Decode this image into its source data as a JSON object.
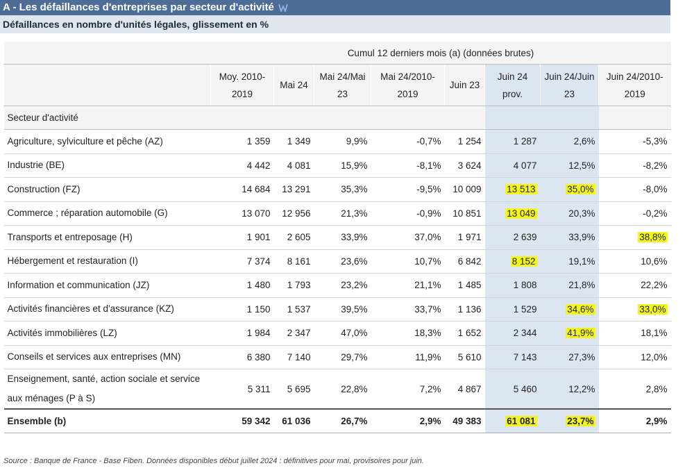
{
  "header": {
    "title": "A - Les défaillances d'entreprises par secteur d'activité",
    "subtitle": "Défaillances en nombre d'unités légales, glissement en %"
  },
  "table": {
    "group_header": "Cumul 12 derniers mois (a) (données brutes)",
    "columns": [
      "Moy. 2010-2019",
      "Mai 24",
      "Mai 24/Mai 23",
      "Mai 24/2010-2019",
      "Juin 23",
      "Juin 24 prov.",
      "Juin 24/Juin 23",
      "Juin 24/2010-2019"
    ],
    "row_header": "Secteur d'activité",
    "shaded_columns": [
      5,
      6
    ],
    "rows": [
      [
        "Agriculture, sylviculture et pêche (AZ)",
        "1 359",
        "1 349",
        "9,9%",
        "-0,7%",
        "1 254",
        "1 287",
        "2,6%",
        "-5,3%"
      ],
      [
        "Industrie (BE)",
        "4 442",
        "4 081",
        "15,9%",
        "-8,1%",
        "3 624",
        "4 077",
        "12,5%",
        "-8,2%"
      ],
      [
        "Construction (FZ)",
        "14 684",
        "13 291",
        "35,3%",
        "-9,5%",
        "10 009",
        "13 513",
        "35,0%",
        "-8,0%"
      ],
      [
        "Commerce ; réparation automobile (G)",
        "13 070",
        "12 956",
        "21,3%",
        "-0,9%",
        "10 851",
        "13 049",
        "20,3%",
        "-0,2%"
      ],
      [
        "Transports et entreposage (H)",
        "1 901",
        "2 605",
        "33,9%",
        "37,0%",
        "1 971",
        "2 639",
        "33,9%",
        "38,8%"
      ],
      [
        "Hébergement et restauration (I)",
        "7 374",
        "8 161",
        "23,6%",
        "10,7%",
        "6 842",
        "8 152",
        "19,1%",
        "10,6%"
      ],
      [
        "Information et communication (JZ)",
        "1 480",
        "1 793",
        "23,2%",
        "21,1%",
        "1 485",
        "1 808",
        "21,8%",
        "22,2%"
      ],
      [
        "Activités financières et d'assurance (KZ)",
        "1 150",
        "1 537",
        "39,5%",
        "33,7%",
        "1 136",
        "1 529",
        "34,6%",
        "33,0%"
      ],
      [
        "Activités immobilières (LZ)",
        "1 984",
        "2 347",
        "47,0%",
        "18,3%",
        "1 652",
        "2 344",
        "41,9%",
        "18,1%"
      ],
      [
        "Conseils et services aux entreprises (MN)",
        "6 380",
        "7 140",
        "29,7%",
        "11,9%",
        "5 610",
        "7 143",
        "27,3%",
        "12,0%"
      ],
      [
        "Enseignement, santé, action sociale et service aux ménages (P à S)",
        "5 311",
        "5 695",
        "22,8%",
        "7,2%",
        "4 867",
        "5 460",
        "12,2%",
        "2,8%"
      ]
    ],
    "total": [
      "Ensemble (b)",
      "59 342",
      "61 036",
      "26,7%",
      "2,9%",
      "49 383",
      "61 081",
      "23,7%",
      "2,9%"
    ],
    "highlights": [
      [
        2,
        6
      ],
      [
        2,
        7
      ],
      [
        3,
        6
      ],
      [
        4,
        8
      ],
      [
        5,
        6
      ],
      [
        7,
        7
      ],
      [
        7,
        8
      ],
      [
        8,
        7
      ],
      [
        "total",
        6
      ],
      [
        "total",
        7
      ]
    ]
  },
  "source": "Source : Banque de France - Base Fiben. Données disponibles début juillet 2024 : définitives pour mai, provisoires pour juin."
}
